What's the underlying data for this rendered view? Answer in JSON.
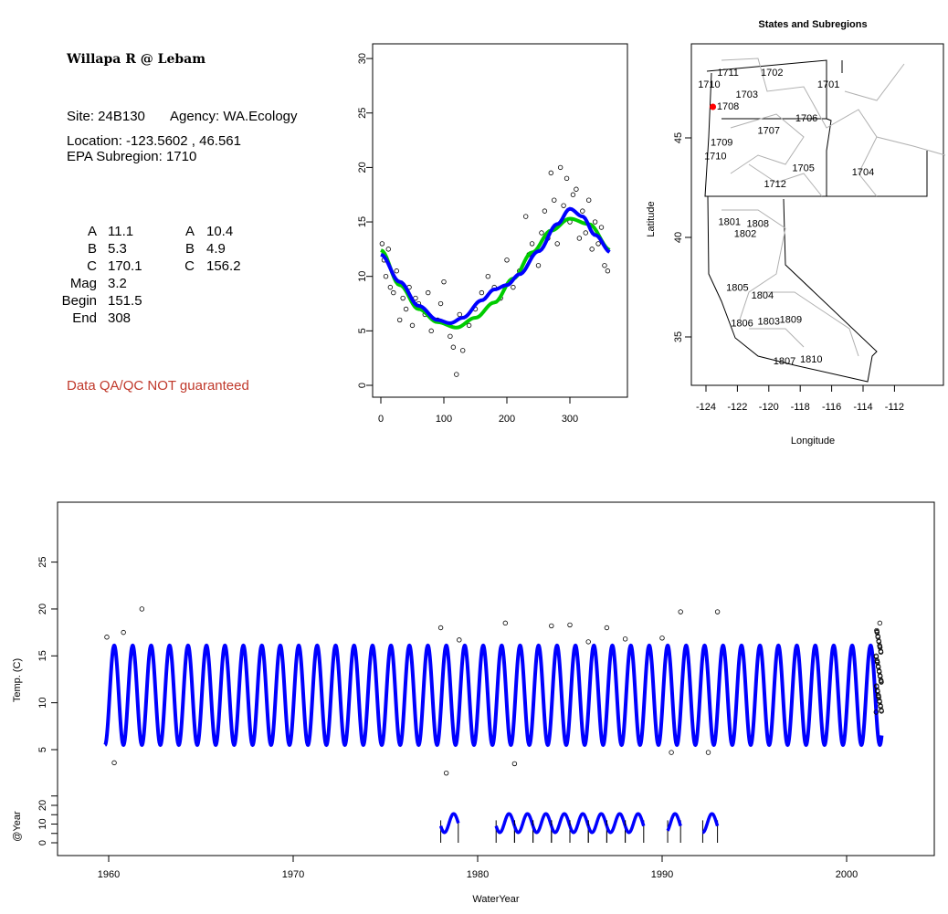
{
  "info": {
    "title": "Willapa R @ Lebam",
    "site": "Site: 24B130",
    "agency": "Agency: WA.Ecology",
    "location": "Location: -123.5602 , 46.561",
    "subregion": "EPA Subregion: 1710",
    "params_left": [
      [
        "A",
        "11.1"
      ],
      [
        "B",
        "5.3"
      ],
      [
        "C",
        "170.1"
      ],
      [
        "Mag",
        "3.2"
      ],
      [
        "Begin",
        "151.5"
      ],
      [
        "End",
        "308"
      ]
    ],
    "params_right": [
      [
        "A",
        "10.4"
      ],
      [
        "B",
        "4.9"
      ],
      [
        "C",
        "156.2"
      ]
    ],
    "disclaimer": "Data QA/QC NOT guaranteed",
    "disclaimer_color": "#c0392b"
  },
  "chart_data": [
    {
      "type": "scatter",
      "title": "",
      "xlabel": "",
      "ylabel": "",
      "xlim": [
        -5,
        375
      ],
      "ylim": [
        -1,
        31
      ],
      "xticks": [
        "0",
        "100",
        "200",
        "300"
      ],
      "yticks": [
        "0",
        "5",
        "10",
        "15",
        "20",
        "25",
        "30"
      ],
      "points": [
        [
          2,
          13
        ],
        [
          5,
          11.5
        ],
        [
          8,
          10
        ],
        [
          12,
          12.5
        ],
        [
          15,
          9
        ],
        [
          20,
          8.5
        ],
        [
          25,
          10.5
        ],
        [
          30,
          6
        ],
        [
          35,
          8
        ],
        [
          40,
          7
        ],
        [
          45,
          9
        ],
        [
          50,
          5.5
        ],
        [
          55,
          8
        ],
        [
          60,
          7.5
        ],
        [
          70,
          6.5
        ],
        [
          75,
          8.5
        ],
        [
          80,
          5
        ],
        [
          90,
          6
        ],
        [
          95,
          7.5
        ],
        [
          100,
          9.5
        ],
        [
          110,
          4.5
        ],
        [
          115,
          3.5
        ],
        [
          120,
          1
        ],
        [
          125,
          6.5
        ],
        [
          130,
          3.2
        ],
        [
          140,
          5.5
        ],
        [
          150,
          7
        ],
        [
          160,
          8.5
        ],
        [
          170,
          10
        ],
        [
          180,
          9
        ],
        [
          190,
          8
        ],
        [
          200,
          11.5
        ],
        [
          210,
          9
        ],
        [
          220,
          10.5
        ],
        [
          230,
          15.5
        ],
        [
          235,
          12
        ],
        [
          240,
          13
        ],
        [
          250,
          11
        ],
        [
          255,
          14
        ],
        [
          260,
          16
        ],
        [
          265,
          13.5
        ],
        [
          270,
          19.5
        ],
        [
          275,
          17
        ],
        [
          280,
          13
        ],
        [
          285,
          20
        ],
        [
          290,
          16.5
        ],
        [
          295,
          19
        ],
        [
          300,
          15
        ],
        [
          305,
          17.5
        ],
        [
          310,
          18
        ],
        [
          315,
          13.5
        ],
        [
          320,
          16
        ],
        [
          325,
          14
        ],
        [
          330,
          17
        ],
        [
          335,
          12.5
        ],
        [
          340,
          15
        ],
        [
          345,
          13
        ],
        [
          350,
          14.5
        ],
        [
          355,
          11
        ],
        [
          360,
          10.5
        ]
      ],
      "series": [
        {
          "name": "fit-blue",
          "color": "#0000ff",
          "x": [
            0,
            30,
            60,
            90,
            110,
            130,
            160,
            180,
            200,
            220,
            250,
            280,
            300,
            320,
            340,
            365
          ],
          "y": [
            12,
            9.5,
            7.3,
            6.0,
            5.7,
            6.2,
            7.8,
            8.8,
            9.2,
            10.2,
            12.3,
            14.8,
            16.2,
            15.5,
            13.8,
            12.2
          ]
        },
        {
          "name": "fit-green",
          "color": "#00cc00",
          "x": [
            0,
            30,
            60,
            90,
            120,
            150,
            180,
            210,
            240,
            270,
            300,
            330,
            365
          ],
          "y": [
            12.4,
            9.2,
            7.0,
            5.8,
            5.3,
            6.2,
            7.6,
            9.8,
            12.2,
            14.2,
            15.3,
            14.8,
            12.4
          ]
        }
      ]
    },
    {
      "type": "map",
      "title": "States and Subregions",
      "xlabel": "Longitude",
      "ylabel": "Latitude",
      "xticks": [
        "-124",
        "-122",
        "-120",
        "-118",
        "-116",
        "-114",
        "-112"
      ],
      "yticks": [
        "35",
        "40",
        "45"
      ],
      "site": {
        "lon": -123.56,
        "lat": 46.56,
        "color": "#ff0000"
      },
      "region_labels": [
        [
          "1711",
          -122.6,
          48.3
        ],
        [
          "1702",
          -119.8,
          48.3
        ],
        [
          "1701",
          -116.2,
          47.7
        ],
        [
          "1710",
          -123.8,
          47.7
        ],
        [
          "1703",
          -121.4,
          47.2
        ],
        [
          "1708",
          -122.6,
          46.6
        ],
        [
          "1706",
          -117.6,
          46.0
        ],
        [
          "1707",
          -120.0,
          45.4
        ],
        [
          "1709",
          -123.0,
          44.8
        ],
        [
          "1710",
          -123.4,
          44.1
        ],
        [
          "1705",
          -117.8,
          43.5
        ],
        [
          "1704",
          -114.0,
          43.3
        ],
        [
          "1712",
          -119.6,
          42.7
        ],
        [
          "1801",
          -122.5,
          40.8
        ],
        [
          "1808",
          -120.7,
          40.7
        ],
        [
          "1802",
          -121.5,
          40.2
        ],
        [
          "1805",
          -122.0,
          37.5
        ],
        [
          "1804",
          -120.4,
          37.1
        ],
        [
          "1806",
          -121.7,
          35.7
        ],
        [
          "1803",
          -120.0,
          35.8
        ],
        [
          "1809",
          -118.6,
          35.9
        ],
        [
          "1807",
          -119.0,
          33.8
        ],
        [
          "1810",
          -117.3,
          33.9
        ]
      ]
    },
    {
      "type": "line",
      "xlabel": "WaterYear",
      "ylabel": "Temp. (C)",
      "ylabel2": "@Year",
      "xlim": [
        1957.2,
        2004.8
      ],
      "xticks": [
        "1960",
        "1970",
        "1980",
        "1990",
        "2000"
      ],
      "yticks": [
        "5",
        "10",
        "15",
        "20",
        "25"
      ],
      "yticks2": [
        "0",
        "10",
        "20"
      ],
      "model": {
        "start": 1959.8,
        "end": 2001.9,
        "min": 5.5,
        "max": 16.1,
        "color": "#0000ff"
      },
      "outliers": [
        [
          1959.9,
          17
        ],
        [
          1960.3,
          3.6
        ],
        [
          1960.8,
          17.5
        ],
        [
          1961.8,
          20
        ],
        [
          1978.0,
          18
        ],
        [
          1978.3,
          2.5
        ],
        [
          1979.0,
          16.7
        ],
        [
          1981.5,
          18.5
        ],
        [
          1982.0,
          3.5
        ],
        [
          1984.0,
          18.2
        ],
        [
          1985.0,
          18.3
        ],
        [
          1986.0,
          16.5
        ],
        [
          1987.0,
          18
        ],
        [
          1988.0,
          16.8
        ],
        [
          1990.0,
          16.9
        ],
        [
          1990.5,
          4.7
        ],
        [
          1991.0,
          19.7
        ],
        [
          1992.5,
          4.7
        ],
        [
          1993.0,
          19.7
        ],
        [
          2001.8,
          18.5
        ]
      ],
      "year_segments": [
        [
          1978.0,
          1978.95
        ],
        [
          1981.0,
          1982.0
        ],
        [
          1982.0,
          1983.0
        ],
        [
          1983.0,
          1984.0
        ],
        [
          1984.0,
          1985.0
        ],
        [
          1985.0,
          1986.0
        ],
        [
          1986.0,
          1987.0
        ],
        [
          1987.0,
          1988.0
        ],
        [
          1988.0,
          1989.0
        ],
        [
          1990.3,
          1991.0
        ],
        [
          1992.2,
          1993.0
        ]
      ]
    }
  ]
}
